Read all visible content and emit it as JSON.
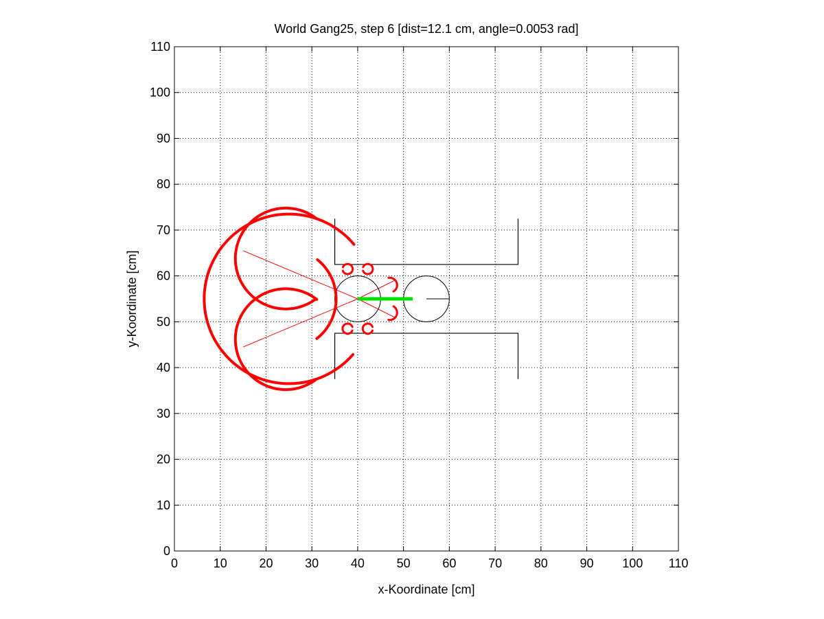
{
  "chart_data": {
    "type": "scatter",
    "title": "World Gang25, step 6 [dist=12.1 cm, angle=0.0053 rad]",
    "xlabel": "x-Koordinate [cm]",
    "ylabel": "y-Koordinate [cm]",
    "xlim": [
      0,
      110
    ],
    "ylim": [
      0,
      110
    ],
    "xticks": [
      0,
      10,
      20,
      30,
      40,
      50,
      60,
      70,
      80,
      90,
      100,
      110
    ],
    "yticks": [
      0,
      10,
      20,
      30,
      40,
      50,
      60,
      70,
      80,
      90,
      100,
      110
    ],
    "grid": true,
    "colors": {
      "sensor": "#ff0000",
      "heading": "#00e000",
      "walls": "#000000"
    },
    "walls": [
      {
        "x": [
          35,
          35,
          75,
          75
        ],
        "y": [
          72.5,
          62.5,
          62.5,
          72.5
        ]
      },
      {
        "x": [
          35,
          35,
          75,
          75
        ],
        "y": [
          37.5,
          47.5,
          47.5,
          37.5
        ]
      }
    ],
    "robots": [
      {
        "cx": 40,
        "cy": 55,
        "r": 5
      },
      {
        "cx": 55,
        "cy": 55,
        "r": 5,
        "heading_line": {
          "x": [
            55,
            60
          ],
          "y": [
            55,
            55
          ]
        }
      }
    ],
    "heading": {
      "x": [
        40,
        52
      ],
      "y": [
        55,
        55
      ]
    },
    "sensor_rays": [
      {
        "x": [
          40,
          15
        ],
        "y": [
          55,
          65.5
        ]
      },
      {
        "x": [
          40,
          15
        ],
        "y": [
          55,
          44.5
        ]
      },
      {
        "x": [
          40,
          48
        ],
        "y": [
          55,
          59
        ]
      },
      {
        "x": [
          40,
          48
        ],
        "y": [
          55,
          51
        ]
      }
    ],
    "sensor_arcs": [
      {
        "cx": 25,
        "cy": 55,
        "r": 18.5,
        "a0": 40,
        "a1": 320,
        "w": 4
      },
      {
        "cx": 24.3,
        "cy": 55,
        "r": 11,
        "a0": 0,
        "a1": 52,
        "w": 4
      },
      {
        "cx": 24.3,
        "cy": 55,
        "r": 11,
        "a0": 308,
        "a1": 360,
        "w": 4
      },
      {
        "cx": 24.3,
        "cy": 55,
        "r": 11,
        "a0": 52,
        "a1": 308,
        "w": 4,
        "dy": -8.8
      },
      {
        "cx": 24.3,
        "cy": 55,
        "r": 11,
        "a0": 52,
        "a1": 308,
        "w": 4,
        "dy": 8.8
      },
      {
        "cx": 47,
        "cy": 58,
        "r": 1.6,
        "a0": 300,
        "a1": 460,
        "w": 3
      },
      {
        "cx": 47,
        "cy": 52,
        "r": 1.6,
        "a0": 260,
        "a1": 420,
        "w": 3
      },
      {
        "cx": 37.8,
        "cy": 61.5,
        "r": 1.1,
        "a0": 200,
        "a1": 520,
        "w": 3
      },
      {
        "cx": 42.2,
        "cy": 61.5,
        "r": 1.1,
        "a0": 200,
        "a1": 520,
        "w": 3
      },
      {
        "cx": 37.8,
        "cy": 48.5,
        "r": 1.1,
        "a0": 20,
        "a1": 340,
        "w": 3
      },
      {
        "cx": 42.2,
        "cy": 48.5,
        "r": 1.1,
        "a0": 20,
        "a1": 340,
        "w": 3
      }
    ]
  }
}
